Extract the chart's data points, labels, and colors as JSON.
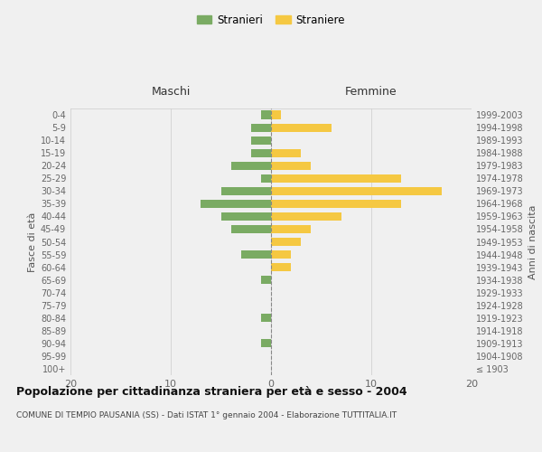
{
  "age_groups": [
    "100+",
    "95-99",
    "90-94",
    "85-89",
    "80-84",
    "75-79",
    "70-74",
    "65-69",
    "60-64",
    "55-59",
    "50-54",
    "45-49",
    "40-44",
    "35-39",
    "30-34",
    "25-29",
    "20-24",
    "15-19",
    "10-14",
    "5-9",
    "0-4"
  ],
  "birth_years": [
    "≤ 1903",
    "1904-1908",
    "1909-1913",
    "1914-1918",
    "1919-1923",
    "1924-1928",
    "1929-1933",
    "1934-1938",
    "1939-1943",
    "1944-1948",
    "1949-1953",
    "1954-1958",
    "1959-1963",
    "1964-1968",
    "1969-1973",
    "1974-1978",
    "1979-1983",
    "1984-1988",
    "1989-1993",
    "1994-1998",
    "1999-2003"
  ],
  "maschi": [
    0,
    0,
    1,
    0,
    1,
    0,
    0,
    1,
    0,
    3,
    0,
    4,
    5,
    7,
    5,
    1,
    4,
    2,
    2,
    2,
    1
  ],
  "femmine": [
    0,
    0,
    0,
    0,
    0,
    0,
    0,
    0,
    2,
    2,
    3,
    4,
    7,
    13,
    17,
    13,
    4,
    3,
    0,
    6,
    1
  ],
  "color_maschi": "#7aab63",
  "color_femmine": "#f5c842",
  "xlim": 20,
  "title": "Popolazione per cittadinanza straniera per età e sesso - 2004",
  "subtitle": "COMUNE DI TEMPIO PAUSANIA (SS) - Dati ISTAT 1° gennaio 2004 - Elaborazione TUTTITALIA.IT",
  "ylabel_left": "Fasce di età",
  "ylabel_right": "Anni di nascita",
  "label_maschi": "Stranieri",
  "label_femmine": "Straniere",
  "header_maschi": "Maschi",
  "header_femmine": "Femmine",
  "bg_color": "#f0f0f0",
  "grid_color": "#cccccc"
}
